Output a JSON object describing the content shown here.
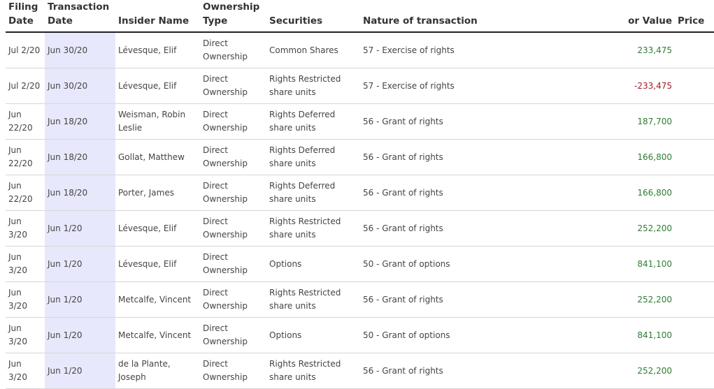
{
  "headers": {
    "filing_date": "Filing Date",
    "transaction_date": "Transaction Date",
    "insider_name": "Insider Name",
    "ownership_type": "Ownership Type",
    "securities": "Securities",
    "nature": "Nature of transaction",
    "value": "or Value",
    "price": "Price"
  },
  "colors": {
    "positive": "#2e7d32",
    "negative": "#a01c2c",
    "highlight": "#e8e8fc"
  },
  "rows": [
    {
      "filing": "Jul 2/20",
      "tx": "Jun 30/20",
      "name": "Lévesque, Elif",
      "own": "Direct Ownership",
      "sec": "Common Shares",
      "nature": "57 - Exercise of rights",
      "value": "233,475",
      "sign": "pos"
    },
    {
      "filing": "Jul 2/20",
      "tx": "Jun 30/20",
      "name": "Lévesque, Elif",
      "own": "Direct Ownership",
      "sec": "Rights Restricted share units",
      "nature": "57 - Exercise of rights",
      "value": "-233,475",
      "sign": "neg"
    },
    {
      "filing": "Jun 22/20",
      "tx": "Jun 18/20",
      "name": "Weisman, Robin Leslie",
      "own": "Direct Ownership",
      "sec": "Rights Deferred share units",
      "nature": "56 - Grant of rights",
      "value": "187,700",
      "sign": "pos"
    },
    {
      "filing": "Jun 22/20",
      "tx": "Jun 18/20",
      "name": "Gollat, Matthew",
      "own": "Direct Ownership",
      "sec": "Rights Deferred share units",
      "nature": "56 - Grant of rights",
      "value": "166,800",
      "sign": "pos"
    },
    {
      "filing": "Jun 22/20",
      "tx": "Jun 18/20",
      "name": "Porter, James",
      "own": "Direct Ownership",
      "sec": "Rights Deferred share units",
      "nature": "56 - Grant of rights",
      "value": "166,800",
      "sign": "pos"
    },
    {
      "filing": "Jun 3/20",
      "tx": "Jun 1/20",
      "name": "Lévesque, Elif",
      "own": "Direct Ownership",
      "sec": "Rights Restricted share units",
      "nature": "56 - Grant of rights",
      "value": "252,200",
      "sign": "pos"
    },
    {
      "filing": "Jun 3/20",
      "tx": "Jun 1/20",
      "name": "Lévesque, Elif",
      "own": "Direct Ownership",
      "sec": "Options",
      "nature": "50 - Grant of options",
      "value": "841,100",
      "sign": "pos"
    },
    {
      "filing": "Jun 3/20",
      "tx": "Jun 1/20",
      "name": "Metcalfe, Vincent",
      "own": "Direct Ownership",
      "sec": "Rights Restricted share units",
      "nature": "56 - Grant of rights",
      "value": "252,200",
      "sign": "pos"
    },
    {
      "filing": "Jun 3/20",
      "tx": "Jun 1/20",
      "name": "Metcalfe, Vincent",
      "own": "Direct Ownership",
      "sec": "Options",
      "nature": "50 - Grant of options",
      "value": "841,100",
      "sign": "pos"
    },
    {
      "filing": "Jun 3/20",
      "tx": "Jun 1/20",
      "name": "de la Plante, Joseph",
      "own": "Direct Ownership",
      "sec": "Rights Restricted share units",
      "nature": "56 - Grant of rights",
      "value": "252,200",
      "sign": "pos"
    }
  ]
}
